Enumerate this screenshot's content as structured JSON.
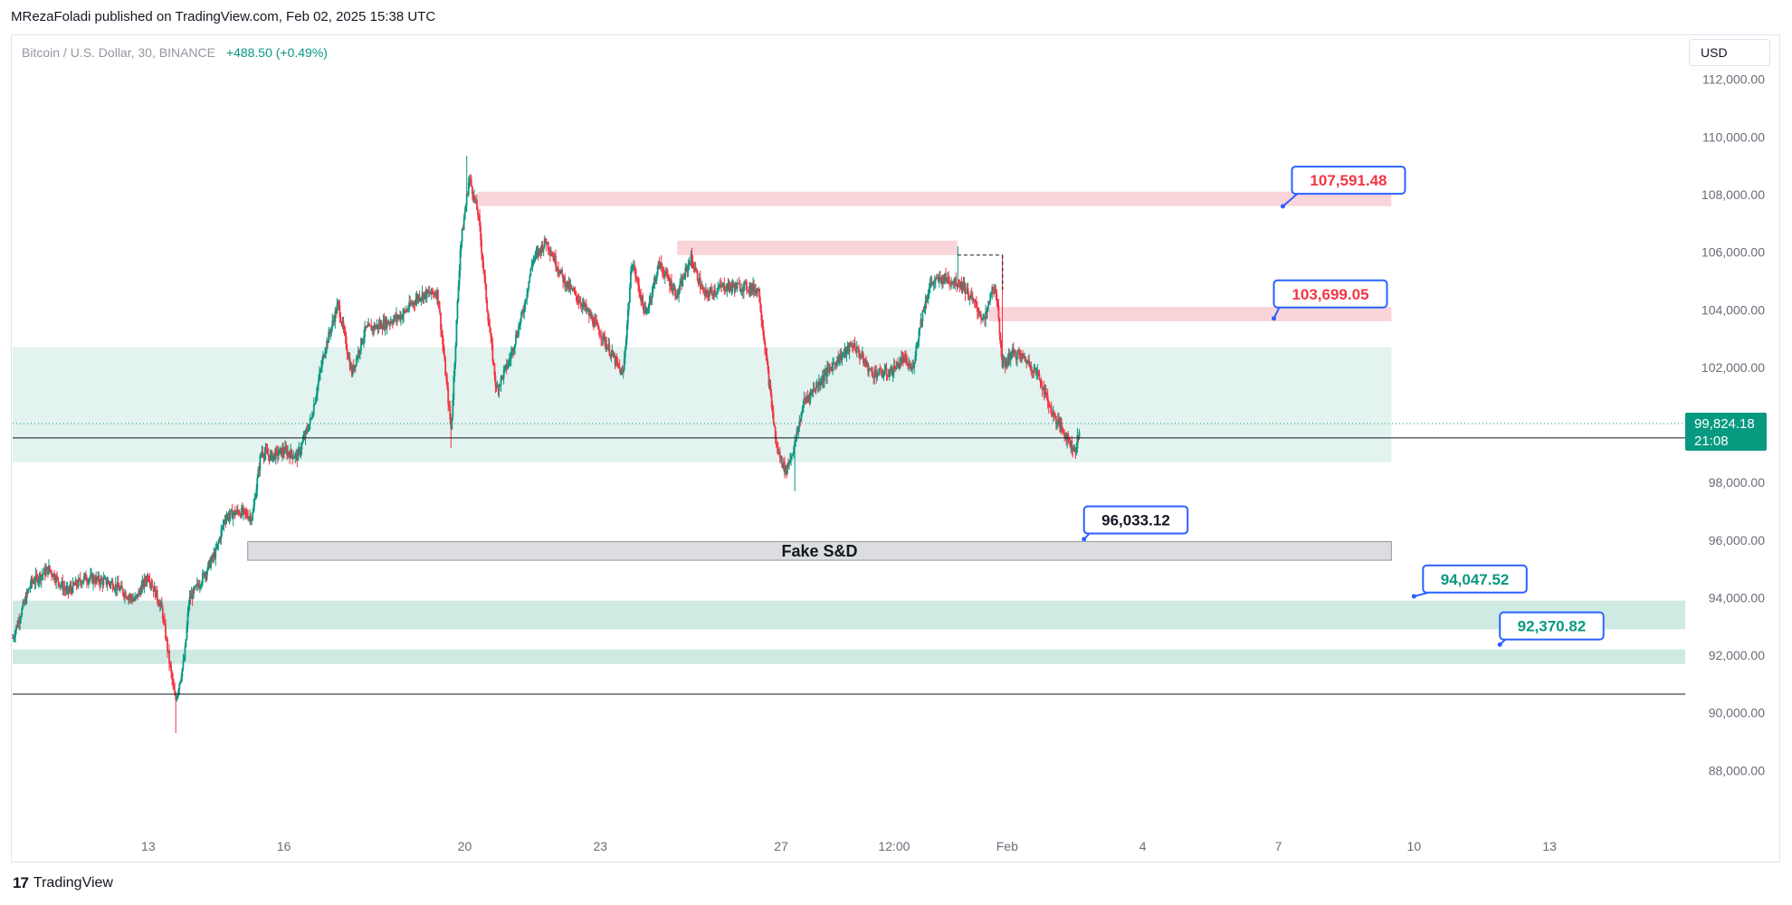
{
  "header": {
    "publish_line": "MRezaFoladi published on TradingView.com, Feb 02, 2025 15:38 UTC"
  },
  "symbol": {
    "name": "Bitcoin / U.S. Dollar, 30, BINANCE",
    "change": "+488.50 (+0.49%)"
  },
  "currency": "USD",
  "footer": {
    "brand": "TradingView"
  },
  "colors": {
    "up": "#089981",
    "down": "#f23645",
    "supply_zone": "#f9d4d8",
    "demand_zone": "#cfe9e3",
    "range_zone": "#e3f3ef",
    "fake_zone": "#dcdde0",
    "callout_border": "#2962ff",
    "last_price_bg": "#089981"
  },
  "chart_data": {
    "type": "candlestick",
    "timeframe": "30",
    "ylim": [
      86000,
      113500
    ],
    "y_ticks": [
      88000,
      90000,
      92000,
      94000,
      96000,
      98000,
      100000,
      102000,
      104000,
      106000,
      108000,
      110000,
      112000
    ],
    "y_tick_labels": [
      "88,000.00",
      "90,000.00",
      "92,000.00",
      "94,000.00",
      "96,000.00",
      "98,000.00",
      "100,000.00",
      "102,000.00",
      "104,000.00",
      "106,000.00",
      "108,000.00",
      "110,000.00",
      "112,000.00"
    ],
    "x_ticks": [
      {
        "label": "13",
        "t": 0
      },
      {
        "label": "16",
        "t": 3
      },
      {
        "label": "20",
        "t": 7
      },
      {
        "label": "23",
        "t": 10
      },
      {
        "label": "27",
        "t": 14
      },
      {
        "label": "12:00",
        "t": 16.5
      },
      {
        "label": "Feb",
        "t": 19
      },
      {
        "label": "4",
        "t": 22
      },
      {
        "label": "7",
        "t": 25
      },
      {
        "label": "10",
        "t": 28
      },
      {
        "label": "13",
        "t": 31
      }
    ],
    "xlim": [
      -3.0,
      34.0
    ],
    "price_path": [
      [
        -3.0,
        92600
      ],
      [
        -2.6,
        94500
      ],
      [
        -2.2,
        95000
      ],
      [
        -1.8,
        94200
      ],
      [
        -1.4,
        94700
      ],
      [
        -0.8,
        94500
      ],
      [
        -0.3,
        93900
      ],
      [
        0.0,
        94800
      ],
      [
        0.3,
        93600
      ],
      [
        0.5,
        91400
      ],
      [
        0.6,
        90400
      ],
      [
        0.8,
        91900
      ],
      [
        0.9,
        93900
      ],
      [
        1.2,
        94700
      ],
      [
        1.5,
        95600
      ],
      [
        1.7,
        96800
      ],
      [
        2.0,
        97000
      ],
      [
        2.3,
        96800
      ],
      [
        2.5,
        99100
      ],
      [
        2.7,
        98900
      ],
      [
        3.0,
        99100
      ],
      [
        3.3,
        98900
      ],
      [
        3.6,
        100200
      ],
      [
        3.9,
        102600
      ],
      [
        4.2,
        104200
      ],
      [
        4.5,
        101800
      ],
      [
        4.8,
        103300
      ],
      [
        5.2,
        103500
      ],
      [
        5.6,
        103800
      ],
      [
        6.0,
        104500
      ],
      [
        6.4,
        104600
      ],
      [
        6.7,
        99800
      ],
      [
        6.9,
        106100
      ],
      [
        7.1,
        108600
      ],
      [
        7.3,
        107300
      ],
      [
        7.5,
        104000
      ],
      [
        7.7,
        101200
      ],
      [
        8.0,
        102300
      ],
      [
        8.3,
        104000
      ],
      [
        8.5,
        105700
      ],
      [
        8.8,
        106400
      ],
      [
        9.2,
        105000
      ],
      [
        9.6,
        104200
      ],
      [
        10.0,
        103200
      ],
      [
        10.3,
        102300
      ],
      [
        10.5,
        101700
      ],
      [
        10.7,
        105700
      ],
      [
        11.0,
        103800
      ],
      [
        11.3,
        105600
      ],
      [
        11.7,
        104500
      ],
      [
        12.0,
        105800
      ],
      [
        12.3,
        104500
      ],
      [
        12.7,
        104800
      ],
      [
        13.2,
        104800
      ],
      [
        13.5,
        104700
      ],
      [
        13.7,
        101900
      ],
      [
        13.9,
        99200
      ],
      [
        14.1,
        98400
      ],
      [
        14.3,
        99300
      ],
      [
        14.5,
        100800
      ],
      [
        14.8,
        101400
      ],
      [
        15.2,
        102200
      ],
      [
        15.6,
        102800
      ],
      [
        16.0,
        101800
      ],
      [
        16.4,
        101800
      ],
      [
        16.7,
        102300
      ],
      [
        16.9,
        101900
      ],
      [
        17.1,
        103700
      ],
      [
        17.3,
        104900
      ],
      [
        17.6,
        105100
      ],
      [
        18.0,
        104900
      ],
      [
        18.2,
        104400
      ],
      [
        18.5,
        103600
      ],
      [
        18.7,
        104900
      ],
      [
        18.8,
        103900
      ],
      [
        18.9,
        102000
      ],
      [
        19.1,
        102500
      ],
      [
        19.4,
        102300
      ],
      [
        19.7,
        101700
      ],
      [
        20.0,
        100400
      ],
      [
        20.2,
        99900
      ],
      [
        20.5,
        99100
      ],
      [
        20.6,
        99800
      ]
    ],
    "extremes": [
      {
        "t": 0.6,
        "low": 89300
      },
      {
        "t": 7.05,
        "high": 109350
      },
      {
        "t": 6.7,
        "low": 99200
      },
      {
        "t": 14.3,
        "low": 97700
      },
      {
        "t": 17.9,
        "high": 106200
      },
      {
        "t": 18.9,
        "high": 105900
      }
    ],
    "zones": [
      {
        "kind": "supply",
        "from": 100000,
        "t0": 7.3,
        "t1": 27.5,
        "top": 108100,
        "bottom": 107600
      },
      {
        "kind": "supply",
        "t0": 11.7,
        "t1": 17.9,
        "top": 106400,
        "bottom": 105900
      },
      {
        "kind": "supply",
        "t0": 18.6,
        "t1": 27.5,
        "top": 104100,
        "bottom": 103600
      },
      {
        "kind": "range",
        "t0": -3.0,
        "t1": 27.5,
        "top": 102700,
        "bottom": 98700
      },
      {
        "kind": "fake",
        "t0": 2.2,
        "t1": 27.5,
        "top": 95950,
        "bottom": 95300,
        "label": "Fake S&D"
      },
      {
        "kind": "demand",
        "t0": -3.0,
        "t1": 34.0,
        "top": 93900,
        "bottom": 92900
      },
      {
        "kind": "demand",
        "t0": -3.0,
        "t1": 34.0,
        "top": 92200,
        "bottom": 91700
      }
    ],
    "lines": [
      {
        "price": 99550,
        "style": "solid"
      },
      {
        "price": 90650,
        "style": "solid"
      },
      {
        "price": 100050,
        "style": "dotted"
      }
    ],
    "callouts": [
      {
        "text": "107,591.48",
        "color": "#f23645",
        "price": 107591.48
      },
      {
        "text": "103,699.05",
        "color": "#f23645",
        "price": 103699.05
      },
      {
        "text": "96,033.12",
        "color": "#131722",
        "price": 96033.12
      },
      {
        "text": "94,047.52",
        "color": "#089981",
        "price": 94047.52
      },
      {
        "text": "92,370.82",
        "color": "#089981",
        "price": 92370.82
      }
    ],
    "last_price": {
      "value": "99,824.18",
      "countdown": "21:08"
    }
  }
}
